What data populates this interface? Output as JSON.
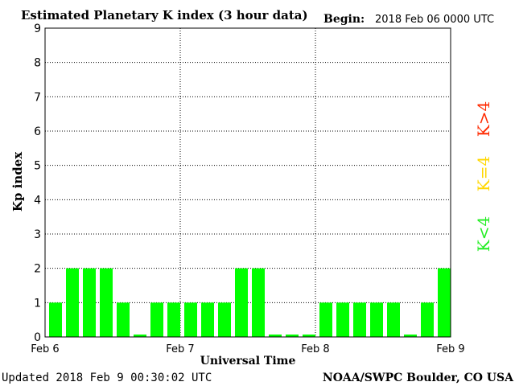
{
  "header": {
    "title": "Estimated Planetary K index (3 hour data)",
    "begin_label": "Begin:",
    "begin_value": "2018 Feb 06 0000 UTC"
  },
  "footer": {
    "updated": "Updated 2018 Feb  9 00:30:02 UTC",
    "source": "NOAA/SWPC Boulder, CO USA"
  },
  "legend": [
    {
      "label": "K>4",
      "color": "#ff2a00"
    },
    {
      "label": "K=4",
      "color": "#ffd700"
    },
    {
      "label": "K<4",
      "color": "#22ee22"
    }
  ],
  "colors": {
    "bar": "#00ff00",
    "grid": "#000000",
    "background": "#ffffff"
  },
  "chart_data": {
    "type": "bar",
    "title": "Estimated Planetary K index (3 hour data)",
    "xlabel": "Universal Time",
    "ylabel": "Kp index",
    "ylim": [
      0,
      9
    ],
    "yticks": [
      "0",
      "1",
      "2",
      "3",
      "4",
      "5",
      "6",
      "7",
      "8",
      "9"
    ],
    "xticks": [
      "Feb 6",
      "Feb 7",
      "Feb 8",
      "Feb 9"
    ],
    "interval_hours": 3,
    "grid": true,
    "values": [
      1,
      2,
      2,
      2,
      1,
      0,
      1,
      1,
      1,
      1,
      1,
      2,
      2,
      0,
      0,
      0,
      1,
      1,
      1,
      1,
      1,
      0,
      1,
      2
    ]
  }
}
